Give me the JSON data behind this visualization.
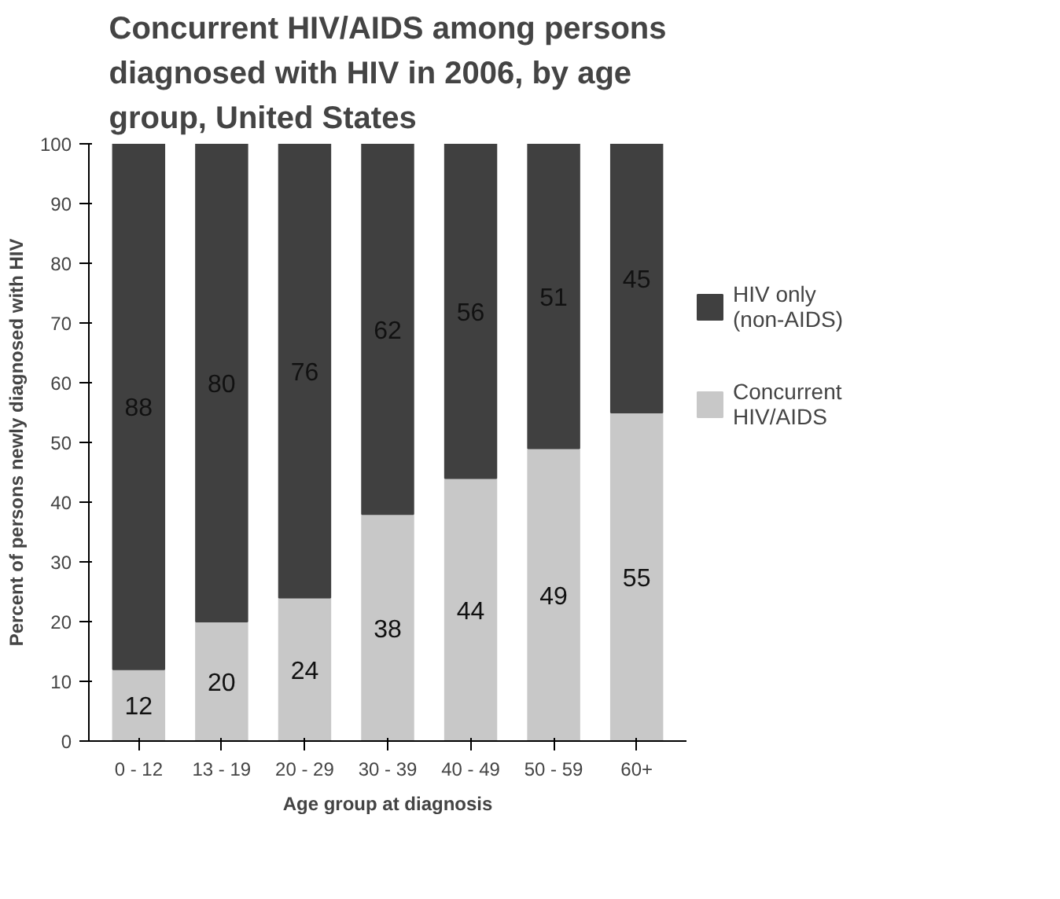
{
  "chart_data": {
    "type": "bar",
    "title": "Concurrent HIV/AIDS among persons diagnosed with HIV in 2006, by age group, United States",
    "xlabel": "Age group at diagnosis",
    "ylabel": "Percent of persons newly diagnosed with HIV",
    "categories": [
      "0 - 12",
      "13 - 19",
      "20 - 29",
      "30 - 39",
      "40 - 49",
      "50 - 59",
      "60+"
    ],
    "stacked": true,
    "data_labels": true,
    "legend": "right",
    "grid": false,
    "ylim": [
      0,
      100
    ],
    "yticks": [
      0,
      10,
      20,
      30,
      40,
      50,
      60,
      70,
      80,
      90,
      100
    ],
    "series": [
      {
        "name": "Concurrent HIV/AIDS",
        "color": "#c8c8c8",
        "values": [
          12,
          20,
          24,
          38,
          44,
          49,
          55
        ]
      },
      {
        "name": "HIV only (non-AIDS)",
        "color": "#404040",
        "values": [
          88,
          80,
          76,
          62,
          56,
          51,
          45
        ]
      }
    ]
  }
}
